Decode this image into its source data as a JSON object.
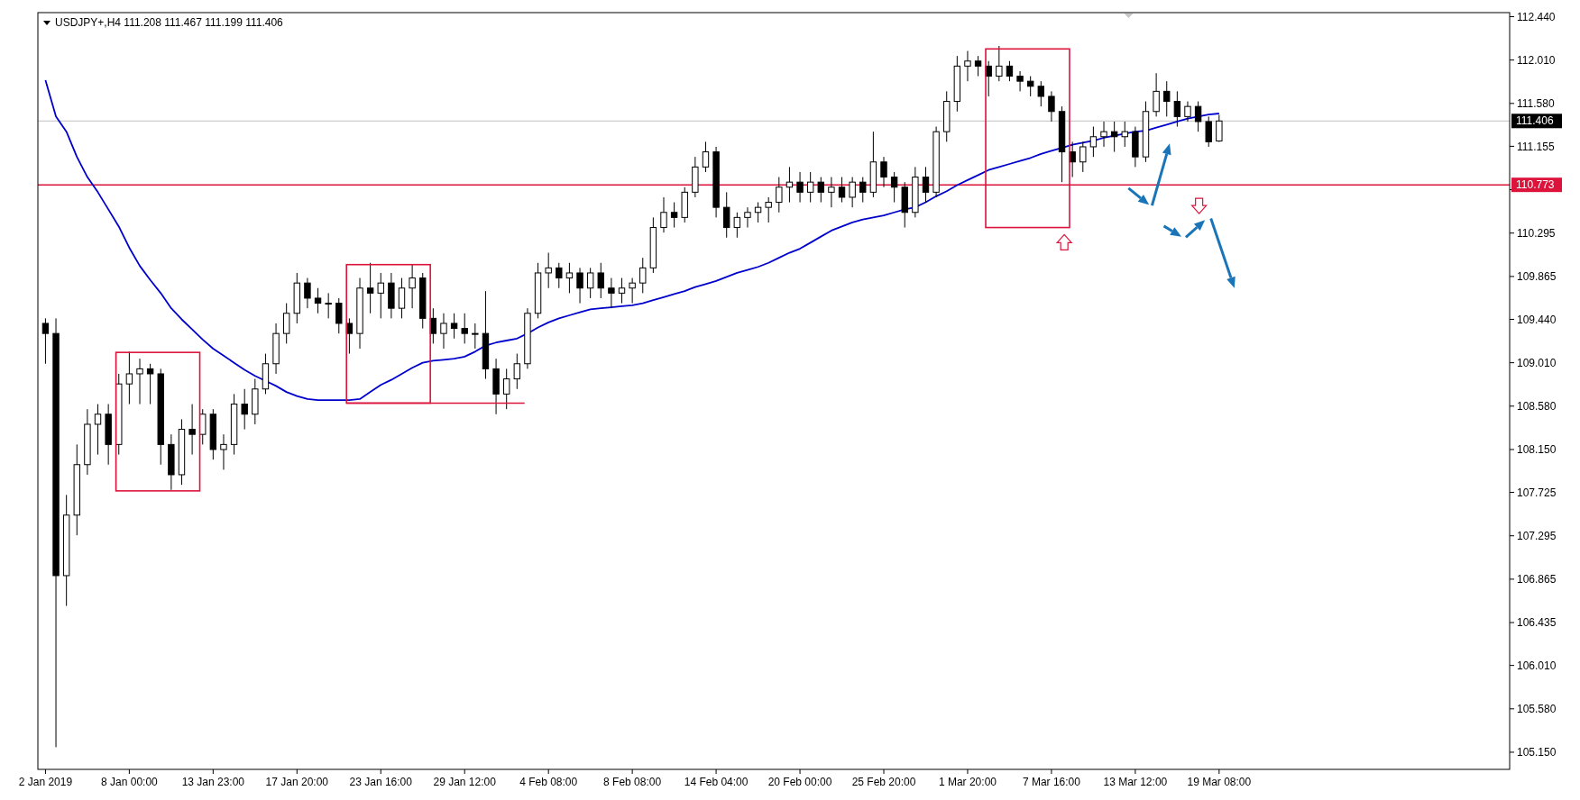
{
  "chart_data": {
    "type": "candlestick",
    "title": "USDJPY+,H4  111.208 111.467 111.199 111.406",
    "categories": [
      "2 Jan 2019",
      null,
      null,
      null,
      null,
      null,
      null,
      null,
      "8 Jan 00:00",
      null,
      null,
      null,
      null,
      null,
      null,
      null,
      "13 Jan 23:00",
      null,
      null,
      null,
      null,
      null,
      null,
      null,
      "17 Jan 20:00",
      null,
      null,
      null,
      null,
      null,
      null,
      null,
      "23 Jan 16:00",
      null,
      null,
      null,
      null,
      null,
      null,
      null,
      "29 Jan 12:00",
      null,
      null,
      null,
      null,
      null,
      null,
      null,
      "4 Feb 08:00",
      null,
      null,
      null,
      null,
      null,
      null,
      null,
      "8 Feb 08:00",
      null,
      null,
      null,
      null,
      null,
      null,
      null,
      "14 Feb 04:00",
      null,
      null,
      null,
      null,
      null,
      null,
      null,
      "20 Feb 00:00",
      null,
      null,
      null,
      null,
      null,
      null,
      null,
      "25 Feb 20:00",
      null,
      null,
      null,
      null,
      null,
      null,
      null,
      "1 Mar 20:00",
      null,
      null,
      null,
      null,
      null,
      null,
      null,
      "7 Mar 16:00",
      null,
      null,
      null,
      null,
      null,
      null,
      null,
      "13 Mar 12:00",
      null,
      null,
      null,
      null,
      null,
      null,
      null,
      "19 Mar 08:00",
      null,
      null,
      null,
      null,
      null,
      null,
      null,
      null,
      null,
      null,
      null,
      null,
      null,
      null,
      null,
      null,
      null,
      null,
      null,
      null,
      null,
      null,
      null,
      null,
      null,
      null,
      null
    ],
    "ohlc": [
      [
        109.4,
        109.45,
        109.0,
        109.3
      ],
      [
        109.3,
        109.45,
        105.2,
        106.9
      ],
      [
        106.9,
        107.7,
        106.6,
        107.5
      ],
      [
        107.5,
        108.2,
        107.3,
        108.0
      ],
      [
        108.0,
        108.55,
        107.9,
        108.4
      ],
      [
        108.4,
        108.6,
        108.1,
        108.5
      ],
      [
        108.5,
        108.6,
        108.0,
        108.2
      ],
      [
        108.2,
        108.9,
        108.1,
        108.8
      ],
      [
        108.8,
        109.12,
        108.6,
        108.9
      ],
      [
        108.9,
        109.05,
        108.6,
        108.95
      ],
      [
        108.95,
        109.0,
        108.6,
        108.9
      ],
      [
        108.9,
        108.95,
        108.0,
        108.2
      ],
      [
        108.2,
        108.3,
        107.75,
        107.9
      ],
      [
        107.9,
        108.45,
        107.8,
        108.35
      ],
      [
        108.35,
        108.6,
        108.1,
        108.3
      ],
      [
        108.3,
        108.55,
        108.2,
        108.5
      ],
      [
        108.5,
        108.55,
        108.05,
        108.15
      ],
      [
        108.15,
        108.3,
        107.95,
        108.2
      ],
      [
        108.2,
        108.7,
        108.1,
        108.6
      ],
      [
        108.6,
        108.75,
        108.35,
        108.5
      ],
      [
        108.5,
        108.85,
        108.4,
        108.75
      ],
      [
        108.75,
        109.1,
        108.7,
        109.0
      ],
      [
        109.0,
        109.4,
        108.9,
        109.3
      ],
      [
        109.3,
        109.6,
        109.2,
        109.5
      ],
      [
        109.5,
        109.9,
        109.4,
        109.8
      ],
      [
        109.8,
        109.85,
        109.55,
        109.65
      ],
      [
        109.65,
        109.75,
        109.5,
        109.6
      ],
      [
        109.6,
        109.7,
        109.45,
        109.6
      ],
      [
        109.6,
        109.65,
        109.3,
        109.4
      ],
      [
        109.4,
        109.45,
        109.1,
        109.3
      ],
      [
        109.3,
        109.85,
        109.15,
        109.75
      ],
      [
        109.75,
        110.0,
        109.5,
        109.7
      ],
      [
        109.7,
        109.9,
        109.45,
        109.8
      ],
      [
        109.8,
        109.9,
        109.45,
        109.55
      ],
      [
        109.55,
        109.85,
        109.45,
        109.75
      ],
      [
        109.75,
        109.98,
        109.55,
        109.85
      ],
      [
        109.85,
        109.9,
        109.35,
        109.45
      ],
      [
        109.45,
        109.55,
        109.2,
        109.3
      ],
      [
        109.3,
        109.5,
        109.15,
        109.4
      ],
      [
        109.4,
        109.5,
        109.25,
        109.35
      ],
      [
        109.35,
        109.5,
        109.2,
        109.3
      ],
      [
        109.3,
        109.4,
        109.15,
        109.3
      ],
      [
        109.3,
        109.72,
        108.85,
        108.95
      ],
      [
        108.95,
        109.05,
        108.5,
        108.7
      ],
      [
        108.7,
        108.95,
        108.55,
        108.85
      ],
      [
        108.85,
        109.1,
        108.75,
        109.0
      ],
      [
        109.0,
        109.55,
        108.95,
        109.5
      ],
      [
        109.5,
        110.0,
        109.45,
        109.9
      ],
      [
        109.9,
        110.1,
        109.75,
        109.95
      ],
      [
        109.95,
        110.0,
        109.75,
        109.85
      ],
      [
        109.85,
        110.0,
        109.7,
        109.9
      ],
      [
        109.9,
        109.95,
        109.6,
        109.75
      ],
      [
        109.75,
        109.95,
        109.65,
        109.9
      ],
      [
        109.9,
        110.0,
        109.65,
        109.75
      ],
      [
        109.75,
        109.85,
        109.55,
        109.7
      ],
      [
        109.7,
        109.85,
        109.6,
        109.75
      ],
      [
        109.75,
        109.85,
        109.6,
        109.8
      ],
      [
        109.8,
        110.05,
        109.7,
        109.95
      ],
      [
        109.95,
        110.45,
        109.9,
        110.35
      ],
      [
        110.35,
        110.65,
        110.3,
        110.5
      ],
      [
        110.5,
        110.6,
        110.35,
        110.45
      ],
      [
        110.45,
        110.75,
        110.4,
        110.7
      ],
      [
        110.7,
        111.05,
        110.65,
        110.95
      ],
      [
        110.95,
        111.2,
        110.9,
        111.1
      ],
      [
        111.1,
        111.15,
        110.45,
        110.55
      ],
      [
        110.55,
        110.7,
        110.25,
        110.35
      ],
      [
        110.35,
        110.5,
        110.25,
        110.45
      ],
      [
        110.45,
        110.55,
        110.35,
        110.5
      ],
      [
        110.5,
        110.6,
        110.4,
        110.55
      ],
      [
        110.55,
        110.65,
        110.4,
        110.6
      ],
      [
        110.6,
        110.85,
        110.5,
        110.75
      ],
      [
        110.75,
        110.95,
        110.6,
        110.8
      ],
      [
        110.8,
        110.9,
        110.6,
        110.7
      ],
      [
        110.7,
        110.9,
        110.6,
        110.8
      ],
      [
        110.8,
        110.85,
        110.6,
        110.7
      ],
      [
        110.7,
        110.85,
        110.55,
        110.75
      ],
      [
        110.75,
        110.85,
        110.6,
        110.65
      ],
      [
        110.65,
        110.85,
        110.55,
        110.8
      ],
      [
        110.8,
        110.85,
        110.6,
        110.7
      ],
      [
        110.7,
        111.3,
        110.65,
        111.0
      ],
      [
        111.0,
        111.05,
        110.75,
        110.85
      ],
      [
        110.85,
        110.9,
        110.6,
        110.75
      ],
      [
        110.75,
        110.8,
        110.35,
        110.5
      ],
      [
        110.5,
        110.95,
        110.45,
        110.85
      ],
      [
        110.85,
        110.95,
        110.6,
        110.7
      ],
      [
        110.7,
        111.35,
        110.65,
        111.3
      ],
      [
        111.3,
        111.7,
        111.2,
        111.6
      ],
      [
        111.6,
        112.05,
        111.5,
        111.95
      ],
      [
        111.95,
        112.1,
        111.8,
        112.0
      ],
      [
        112.0,
        112.05,
        111.85,
        111.95
      ],
      [
        111.95,
        112.0,
        111.65,
        111.85
      ],
      [
        111.85,
        112.15,
        111.8,
        111.95
      ],
      [
        111.95,
        112.0,
        111.8,
        111.85
      ],
      [
        111.85,
        111.9,
        111.7,
        111.8
      ],
      [
        111.8,
        111.85,
        111.65,
        111.75
      ],
      [
        111.75,
        111.8,
        111.55,
        111.65
      ],
      [
        111.65,
        111.7,
        111.4,
        111.5
      ],
      [
        111.5,
        111.55,
        110.8,
        111.1
      ],
      [
        111.1,
        111.2,
        110.85,
        111.0
      ],
      [
        111.0,
        111.2,
        110.9,
        111.15
      ],
      [
        111.15,
        111.35,
        111.05,
        111.25
      ],
      [
        111.25,
        111.4,
        111.15,
        111.3
      ],
      [
        111.3,
        111.4,
        111.1,
        111.25
      ],
      [
        111.25,
        111.4,
        111.15,
        111.3
      ],
      [
        111.3,
        111.35,
        110.95,
        111.05
      ],
      [
        111.05,
        111.6,
        111.0,
        111.5
      ],
      [
        111.5,
        111.88,
        111.45,
        111.7
      ],
      [
        111.7,
        111.8,
        111.45,
        111.6
      ],
      [
        111.6,
        111.7,
        111.35,
        111.45
      ],
      [
        111.45,
        111.6,
        111.4,
        111.55
      ],
      [
        111.55,
        111.6,
        111.3,
        111.4
      ],
      [
        111.4,
        111.45,
        111.15,
        111.2
      ],
      [
        111.208,
        111.467,
        111.199,
        111.406
      ],
      null,
      null,
      null,
      null,
      null,
      null,
      null,
      null,
      null,
      null,
      null,
      null,
      null,
      null,
      null,
      null,
      null,
      null,
      null,
      null,
      null,
      null,
      null,
      null,
      null,
      null,
      null
    ],
    "series": [
      {
        "type": "line",
        "color": "#0000cd",
        "values": [
          111.81,
          111.45,
          111.3,
          111.05,
          110.85,
          110.7,
          110.53,
          110.36,
          110.15,
          109.97,
          109.83,
          109.7,
          109.55,
          109.44,
          109.34,
          109.24,
          109.15,
          109.08,
          109.01,
          108.94,
          108.88,
          108.83,
          108.78,
          108.72,
          108.68,
          108.65,
          108.64,
          108.64,
          108.64,
          108.64,
          108.65,
          108.72,
          108.79,
          108.84,
          108.9,
          108.96,
          109.01,
          109.03,
          109.04,
          109.05,
          109.07,
          109.12,
          109.18,
          109.21,
          109.23,
          109.25,
          109.3,
          109.36,
          109.41,
          109.45,
          109.48,
          109.51,
          109.54,
          109.55,
          109.56,
          109.57,
          109.58,
          109.6,
          109.63,
          109.66,
          109.69,
          109.72,
          109.76,
          109.79,
          109.82,
          109.86,
          109.9,
          109.93,
          109.96,
          110.0,
          110.05,
          110.1,
          110.14,
          110.2,
          110.26,
          110.32,
          110.36,
          110.4,
          110.43,
          110.45,
          110.47,
          110.5,
          110.53,
          110.55,
          110.6,
          110.66,
          110.71,
          110.77,
          110.82,
          110.87,
          110.92,
          110.95,
          110.98,
          111.01,
          111.04,
          111.08,
          111.11,
          111.14,
          111.17,
          111.19,
          111.21,
          111.24,
          111.26,
          111.28,
          111.3,
          111.31,
          111.34,
          111.37,
          111.4,
          111.43,
          111.45,
          111.47,
          111.48,
          null,
          null,
          null,
          null,
          null,
          null,
          null,
          null,
          null,
          null,
          null,
          null,
          null,
          null,
          null,
          null,
          null,
          null,
          null,
          null,
          null,
          null,
          null,
          null,
          null,
          null,
          null
        ]
      }
    ],
    "ylim": [
      104.98,
      112.48
    ],
    "yticks": [
      {
        "value": 112.44,
        "label": "112.440"
      },
      {
        "value": 112.01,
        "label": "112.010"
      },
      {
        "value": 111.58,
        "label": "111.580"
      },
      {
        "value": 111.155,
        "label": "111.155"
      },
      {
        "value": 110.725,
        "label": null
      },
      {
        "value": 110.295,
        "label": "110.295"
      },
      {
        "value": 109.865,
        "label": "109.865"
      },
      {
        "value": 109.44,
        "label": "109.440"
      },
      {
        "value": 109.01,
        "label": "109.010"
      },
      {
        "value": 108.58,
        "label": "108.580"
      },
      {
        "value": 108.15,
        "label": "108.150"
      },
      {
        "value": 107.725,
        "label": "107.725"
      },
      {
        "value": 107.295,
        "label": "107.295"
      },
      {
        "value": 106.865,
        "label": "106.865"
      },
      {
        "value": 106.435,
        "label": "106.435"
      },
      {
        "value": 106.01,
        "label": "106.010"
      },
      {
        "value": 105.58,
        "label": "105.580"
      },
      {
        "value": 105.15,
        "label": "105.150"
      }
    ],
    "ref_lines": [
      {
        "axis": "y",
        "value": 111.406,
        "label": "111.406",
        "color": "#c0c0c0"
      },
      {
        "axis": "y",
        "value": 110.773,
        "label": "110.773",
        "color": "#dc143c"
      }
    ],
    "grid": false
  }
}
